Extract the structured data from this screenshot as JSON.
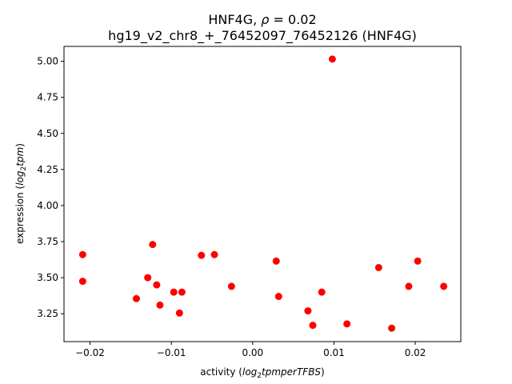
{
  "chart_data": {
    "type": "scatter",
    "title_line1_prefix": "HNF4G, ",
    "title_line1_rho": "ρ",
    "title_line1_suffix": " = 0.02",
    "title_line2": "hg19_v2_chr8_+_76452097_76452126 (HNF4G)",
    "xlabel_prefix": "activity (",
    "xlabel_math": "log",
    "xlabel_sub": "2",
    "xlabel_math2": "tpmperTFBS",
    "xlabel_suffix": ")",
    "ylabel_prefix": "expression (",
    "ylabel_math": "log",
    "ylabel_sub": "2",
    "ylabel_math2": "tpm",
    "ylabel_suffix": ")",
    "xlim": [
      -0.0232,
      0.0256
    ],
    "ylim": [
      3.057,
      5.103
    ],
    "xticks": [
      -0.02,
      -0.01,
      0.0,
      0.01,
      0.02
    ],
    "xtick_labels": [
      "−0.02",
      "−0.01",
      "0.00",
      "0.01",
      "0.02"
    ],
    "yticks": [
      3.25,
      3.5,
      3.75,
      4.0,
      4.25,
      4.5,
      4.75,
      5.0
    ],
    "ytick_labels": [
      "3.25",
      "3.50",
      "3.75",
      "4.00",
      "4.25",
      "4.50",
      "4.75",
      "5.00"
    ],
    "marker_color": "#ff0000",
    "grid": false,
    "points": [
      {
        "x": -0.0209,
        "y": 3.66
      },
      {
        "x": -0.0209,
        "y": 3.475
      },
      {
        "x": -0.0143,
        "y": 3.355
      },
      {
        "x": -0.0129,
        "y": 3.5
      },
      {
        "x": -0.0123,
        "y": 3.73
      },
      {
        "x": -0.0118,
        "y": 3.45
      },
      {
        "x": -0.0114,
        "y": 3.31
      },
      {
        "x": -0.0097,
        "y": 3.4
      },
      {
        "x": -0.009,
        "y": 3.255
      },
      {
        "x": -0.0087,
        "y": 3.4
      },
      {
        "x": -0.0063,
        "y": 3.655
      },
      {
        "x": -0.0047,
        "y": 3.66
      },
      {
        "x": -0.0026,
        "y": 3.44
      },
      {
        "x": 0.0029,
        "y": 3.615
      },
      {
        "x": 0.0032,
        "y": 3.37
      },
      {
        "x": 0.0068,
        "y": 3.27
      },
      {
        "x": 0.0074,
        "y": 3.17
      },
      {
        "x": 0.0085,
        "y": 3.4
      },
      {
        "x": 0.0098,
        "y": 5.015
      },
      {
        "x": 0.0116,
        "y": 3.18
      },
      {
        "x": 0.0155,
        "y": 3.57
      },
      {
        "x": 0.0171,
        "y": 3.15
      },
      {
        "x": 0.0192,
        "y": 3.44
      },
      {
        "x": 0.0203,
        "y": 3.615
      },
      {
        "x": 0.0235,
        "y": 3.44
      }
    ]
  }
}
